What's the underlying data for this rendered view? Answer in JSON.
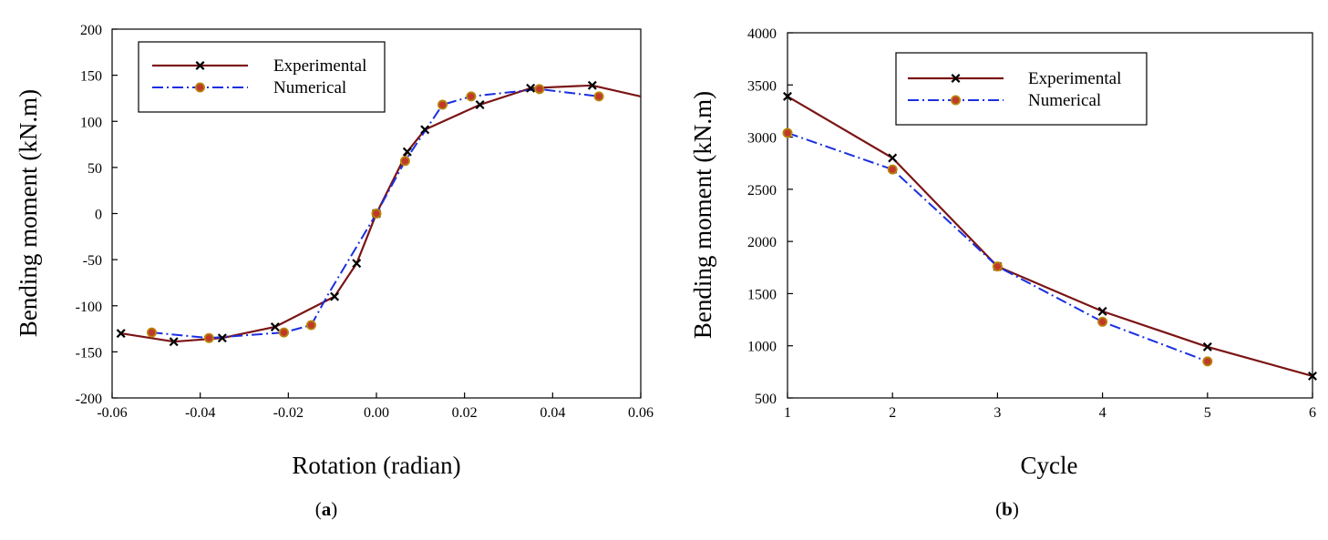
{
  "colors": {
    "experimental": "#7b1414",
    "numerical": "#1a2fe0",
    "marker_x": "#000000",
    "marker_fill": "#c0392b",
    "marker_edge": "#b8860b"
  },
  "chart_data": [
    {
      "id": "a",
      "type": "line",
      "caption_open": "(",
      "caption_letter": "a",
      "caption_close": ")",
      "xlabel": "Rotation (radian)",
      "ylabel": "Bending moment (kN.m)",
      "xlim": [
        -0.06,
        0.06
      ],
      "ylim": [
        -200,
        200
      ],
      "xticks": [
        -0.06,
        -0.04,
        -0.02,
        0.0,
        0.02,
        0.04,
        0.06
      ],
      "xtick_labels": [
        "-0.06",
        "-0.04",
        "-0.02",
        "0.00",
        "0.02",
        "0.04",
        "0.06"
      ],
      "yticks": [
        -200,
        -150,
        -100,
        -50,
        0,
        50,
        100,
        150,
        200
      ],
      "ytick_labels": [
        "-200",
        "-150",
        "-100",
        "-50",
        "0",
        "50",
        "100",
        "150",
        "200"
      ],
      "legend": {
        "position": "top-left",
        "entries": [
          "Experimental",
          "Numerical"
        ]
      },
      "series": [
        {
          "name": "Experimental",
          "style": "solid",
          "marker": "x",
          "x": [
            -0.058,
            -0.046,
            -0.035,
            -0.023,
            -0.0095,
            -0.0045,
            0.0,
            0.007,
            0.011,
            0.0235,
            0.035,
            0.049,
            0.06
          ],
          "y": [
            -130,
            -139,
            -135,
            -123,
            -90,
            -54,
            0,
            67,
            91,
            118,
            136,
            139,
            127
          ],
          "marker_mask": [
            1,
            1,
            1,
            1,
            1,
            1,
            1,
            1,
            1,
            1,
            1,
            1,
            0
          ]
        },
        {
          "name": "Numerical",
          "style": "dashdot",
          "marker": "circle",
          "x": [
            -0.051,
            -0.038,
            -0.021,
            -0.0148,
            -0.011,
            0.0,
            0.0065,
            0.015,
            0.0215,
            0.037,
            0.0505
          ],
          "y": [
            -129,
            -135,
            -129,
            -121,
            -88,
            0,
            57,
            118,
            127,
            135,
            127
          ],
          "marker_mask": [
            1,
            1,
            1,
            1,
            0,
            1,
            1,
            1,
            1,
            1,
            1
          ]
        }
      ]
    },
    {
      "id": "b",
      "type": "line",
      "caption_open": "(",
      "caption_letter": "b",
      "caption_close": ")",
      "xlabel": "Cycle",
      "ylabel": "Bending moment (kN.m)",
      "xlim": [
        1,
        6
      ],
      "ylim": [
        500,
        4000
      ],
      "xticks": [
        1,
        2,
        3,
        4,
        5,
        6
      ],
      "xtick_labels": [
        "1",
        "2",
        "3",
        "4",
        "5",
        "6"
      ],
      "yticks": [
        500,
        1000,
        1500,
        2000,
        2500,
        3000,
        3500,
        4000
      ],
      "ytick_labels": [
        "500",
        "1000",
        "1500",
        "2000",
        "2500",
        "3000",
        "3500",
        "4000"
      ],
      "legend": {
        "position": "top-center",
        "entries": [
          "Experimental",
          "Numerical"
        ]
      },
      "series": [
        {
          "name": "Experimental",
          "style": "solid",
          "marker": "x",
          "x": [
            1,
            2,
            3,
            4,
            5,
            6
          ],
          "y": [
            3390,
            2800,
            1760,
            1330,
            990,
            710
          ],
          "marker_mask": [
            1,
            1,
            1,
            1,
            1,
            1
          ]
        },
        {
          "name": "Numerical",
          "style": "dashdot",
          "marker": "circle",
          "x": [
            1,
            2,
            3,
            4,
            5
          ],
          "y": [
            3040,
            2690,
            1760,
            1230,
            850
          ],
          "marker_mask": [
            1,
            1,
            1,
            1,
            1
          ]
        }
      ]
    }
  ]
}
